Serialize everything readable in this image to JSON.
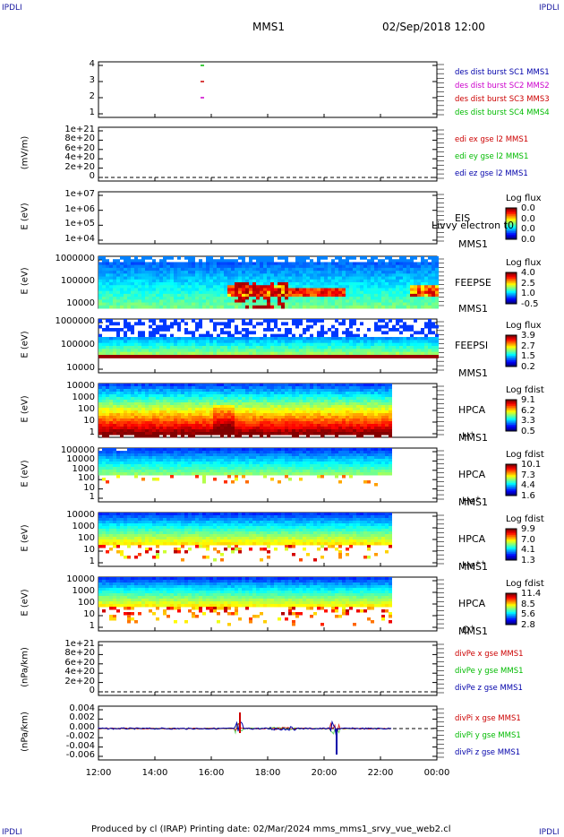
{
  "corners": {
    "top_left": "IPDLI",
    "top_right": "IPDLI",
    "bottom_left": "IPDLI",
    "bottom_right": "IPDLI"
  },
  "header": {
    "mission": "MMS1",
    "datetime": "02/Sep/2018 12:00"
  },
  "footer": "Produced by cl (IRAP)   Printing date: 02/Mar/2024   mms_mms1_srvy_vue_web2.cl",
  "x_axis": {
    "ticks": [
      "12:00",
      "14:00",
      "16:00",
      "18:00",
      "20:00",
      "22:00",
      "00:00"
    ]
  },
  "colors": {
    "blue": "#0000aa",
    "magenta": "#cc00cc",
    "red": "#cc0000",
    "green": "#00bb00"
  },
  "chart_data": [
    {
      "type": "scatter",
      "ylabel": "",
      "y_ticks": [
        "4",
        "3",
        "2",
        "1"
      ],
      "legend": [
        "des dist burst SC1 MMS1",
        "des dist burst SC2 MMS2",
        "des dist burst SC3 MMS3",
        "des dist burst SC4 MMS4"
      ],
      "series": [
        {
          "name": "des dist burst SC4 MMS4",
          "x": "15:40",
          "y": 4
        },
        {
          "name": "des dist burst SC3 MMS3",
          "x": "15:40",
          "y": 3
        },
        {
          "name": "des dist burst SC2 MMS2",
          "x": "15:40",
          "y": 2
        }
      ]
    },
    {
      "type": "line",
      "ylabel": "(mV/m)",
      "y_ticks": [
        "1e+21",
        "8e+20",
        "6e+20",
        "4e+20",
        "2e+20",
        "0"
      ],
      "legend": [
        "edi ex gse l2 MMS1",
        "edi ey gse l2 MMS1",
        "edi ez gse l2 MMS1"
      ]
    },
    {
      "type": "heatmap",
      "ylabel": "E (eV)",
      "y_ticks": [
        "1e+07",
        "1e+06",
        "1e+05",
        "1e+04"
      ],
      "instrument": "EIS",
      "spacecraft": "MMS1",
      "subtitle": "Livvy electron t0",
      "colorbar": {
        "title": "Log flux",
        "values": [
          "0.0",
          "0.0",
          "0.0",
          "0.0"
        ]
      }
    },
    {
      "type": "heatmap",
      "ylabel": "E (eV)",
      "y_ticks": [
        "1000000",
        "100000",
        "10000"
      ],
      "instrument": "FEEPSE",
      "spacecraft": "MMS1",
      "colorbar": {
        "title": "Log flux",
        "values": [
          "4.0",
          "2.5",
          "1.0",
          "-0.5"
        ]
      }
    },
    {
      "type": "heatmap",
      "ylabel": "E (eV)",
      "y_ticks": [
        "1000000",
        "100000",
        "10000"
      ],
      "instrument": "FEEPSI",
      "spacecraft": "MMS1",
      "colorbar": {
        "title": "Log flux",
        "values": [
          "3.9",
          "2.7",
          "1.5",
          "0.2"
        ]
      }
    },
    {
      "type": "heatmap",
      "ylabel": "E (eV)",
      "y_ticks": [
        "10000",
        "1000",
        "100",
        "10",
        "1"
      ],
      "instrument": "HPCA",
      "spacecraft": "MMS1",
      "species": "H",
      "species_charge": "+",
      "colorbar": {
        "title": "Log fdist",
        "values": [
          "9.1",
          "6.2",
          "3.3",
          "0.5"
        ]
      }
    },
    {
      "type": "heatmap",
      "ylabel": "E (eV)",
      "y_ticks": [
        "100000",
        "10000",
        "1000",
        "100",
        "10",
        "1"
      ],
      "instrument": "HPCA",
      "spacecraft": "MMS1",
      "species": "He",
      "species_charge": "+",
      "colorbar": {
        "title": "Log fdist",
        "values": [
          "10.1",
          "7.3",
          "4.4",
          "1.6"
        ]
      }
    },
    {
      "type": "heatmap",
      "ylabel": "E (eV)",
      "y_ticks": [
        "10000",
        "1000",
        "100",
        "10",
        "1"
      ],
      "instrument": "HPCA",
      "spacecraft": "MMS1",
      "species": "He",
      "species_charge": "++",
      "colorbar": {
        "title": "Log fdist",
        "values": [
          "9.9",
          "7.0",
          "4.1",
          "1.3"
        ]
      }
    },
    {
      "type": "heatmap",
      "ylabel": "E (eV)",
      "y_ticks": [
        "10000",
        "1000",
        "100",
        "10",
        "1"
      ],
      "instrument": "HPCA",
      "spacecraft": "MMS1",
      "species": "O",
      "species_charge": "+",
      "colorbar": {
        "title": "Log fdist",
        "values": [
          "11.4",
          "8.5",
          "5.6",
          "2.8"
        ]
      }
    },
    {
      "type": "line",
      "ylabel": "(nPa/km)",
      "y_ticks": [
        "1e+21",
        "8e+20",
        "6e+20",
        "4e+20",
        "2e+20",
        "0"
      ],
      "legend": [
        "divPe x gse MMS1",
        "divPe y gse MMS1",
        "divPe z gse MMS1"
      ]
    },
    {
      "type": "line",
      "ylabel": "(nPa/km)",
      "y_ticks": [
        "0.004",
        "0.002",
        "0.000",
        "-0.002",
        "-0.004",
        "-0.006"
      ],
      "legend": [
        "divPi x gse MMS1",
        "divPi y gse MMS1",
        "divPi z gse MMS1"
      ]
    }
  ]
}
